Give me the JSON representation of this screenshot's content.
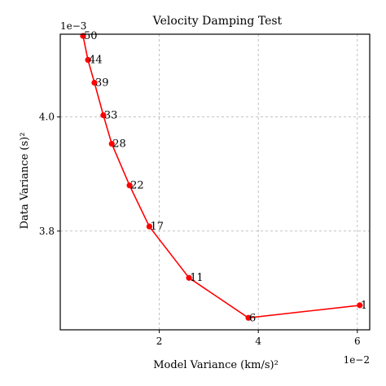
{
  "chart_data": {
    "type": "line",
    "title": "Velocity Damping Test",
    "xlabel": "Model Variance (km/s)²",
    "ylabel": "Data Variance (s)²",
    "x_scale_label": "1e−2",
    "y_scale_label": "1e−3",
    "x_multiplier": 0.01,
    "y_multiplier": 0.001,
    "xlim": [
      0.0,
      0.0625
    ],
    "ylim": [
      0.003627,
      0.004145
    ],
    "x_ticks": [
      0.02,
      0.04,
      0.06
    ],
    "x_tick_labels": [
      "2",
      "4",
      "6"
    ],
    "y_ticks": [
      0.0038,
      0.004
    ],
    "y_tick_labels": [
      "3.8",
      "4.0"
    ],
    "grid": true,
    "series": [
      {
        "color": "#ff0000",
        "marker": "circle",
        "points": [
          {
            "label": "50",
            "x": 0.0046,
            "y": 0.004142
          },
          {
            "label": "44",
            "x": 0.0056,
            "y": 0.0041
          },
          {
            "label": "39",
            "x": 0.0069,
            "y": 0.00406
          },
          {
            "label": "33",
            "x": 0.0087,
            "y": 0.004003
          },
          {
            "label": "28",
            "x": 0.0104,
            "y": 0.003953
          },
          {
            "label": "22",
            "x": 0.014,
            "y": 0.00388
          },
          {
            "label": "17",
            "x": 0.018,
            "y": 0.003808
          },
          {
            "label": "11",
            "x": 0.026,
            "y": 0.003718
          },
          {
            "label": "6",
            "x": 0.038,
            "y": 0.003648
          },
          {
            "label": "1",
            "x": 0.0605,
            "y": 0.00367
          }
        ]
      }
    ]
  }
}
